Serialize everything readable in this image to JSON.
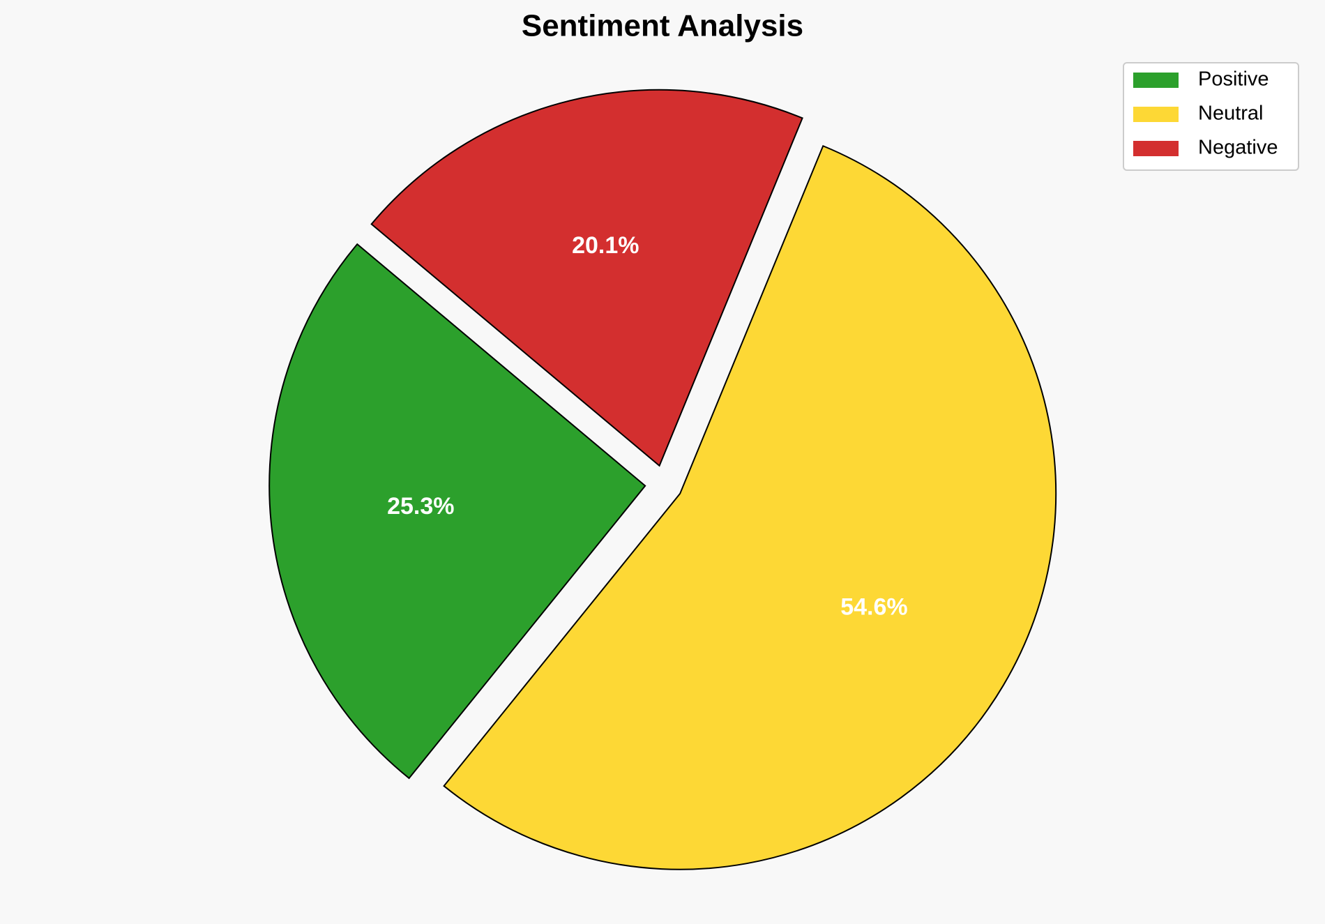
{
  "chart_data": {
    "type": "pie",
    "title": "Sentiment Analysis",
    "categories": [
      "Positive",
      "Neutral",
      "Negative"
    ],
    "values": [
      25.3,
      54.6,
      20.1
    ],
    "value_labels": [
      "25.3%",
      "54.6%",
      "20.1%"
    ],
    "colors": [
      "#2ca02c",
      "#fdd835",
      "#d32f2f"
    ],
    "start_angle": 140,
    "explode": [
      0.05,
      0.05,
      0.05
    ],
    "legend": "upper right"
  }
}
